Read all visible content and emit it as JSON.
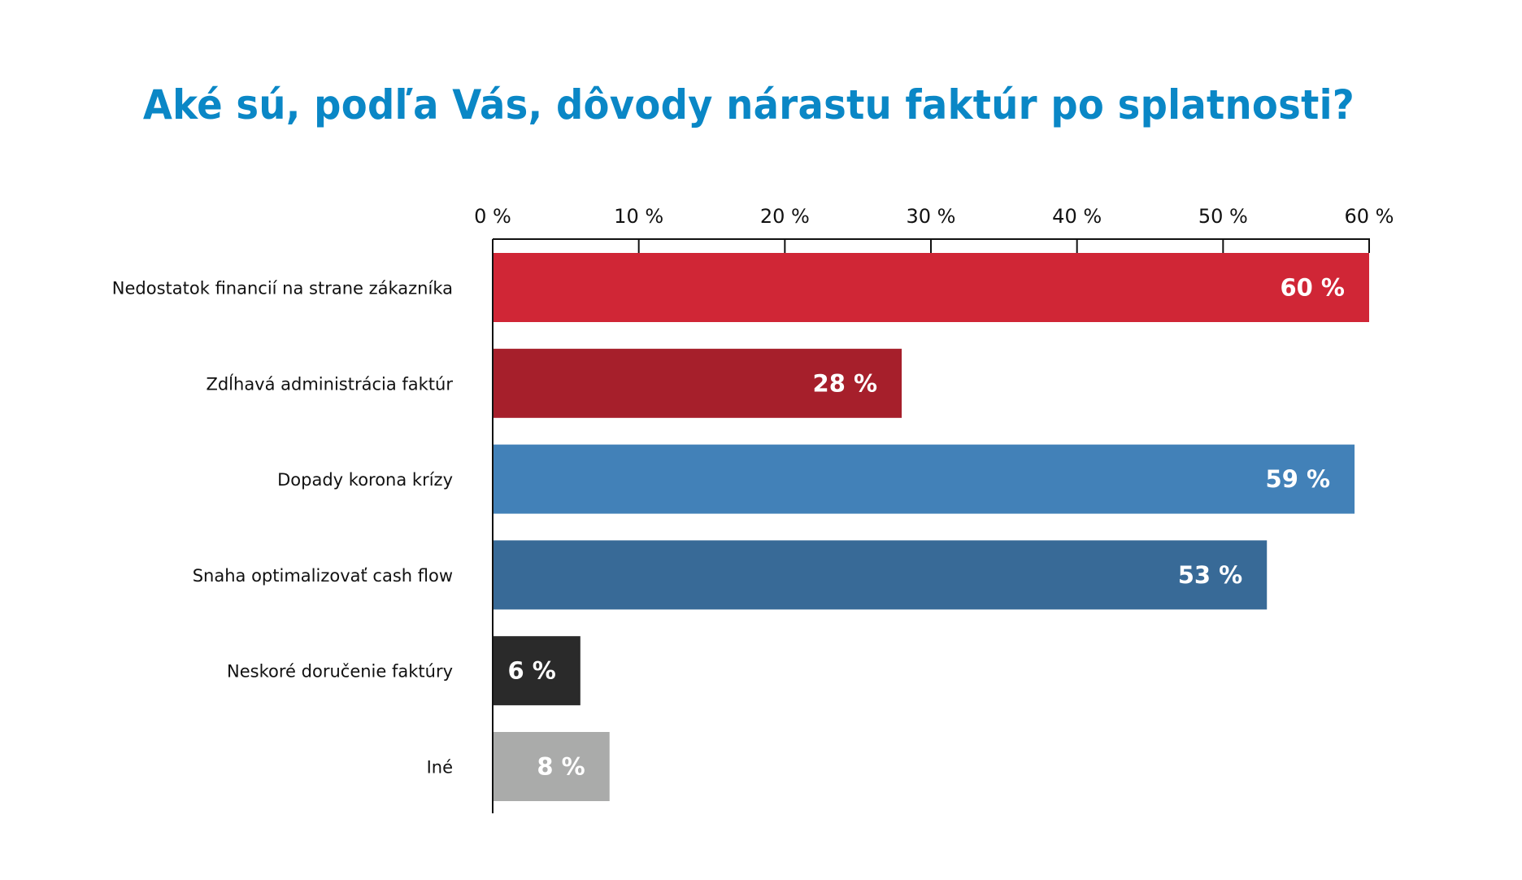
{
  "title": "Aké sú, podľa Vás, dôvody nárastu faktúr po splatnosti?",
  "colors": {
    "title": "#0a87c6",
    "axis": "#111111",
    "value_label": "#ffffff"
  },
  "chart_data": {
    "type": "bar",
    "orientation": "horizontal",
    "title": "Aké sú, podľa Vás, dôvody nárastu faktúr po splatnosti?",
    "xlabel": "",
    "ylabel": "",
    "xlim": [
      0,
      60
    ],
    "axis_position": "top",
    "grid": false,
    "x_ticks": [
      0,
      10,
      20,
      30,
      40,
      50,
      60
    ],
    "x_tick_labels": [
      "0 %",
      "10 %",
      "20 %",
      "30 %",
      "40 %",
      "50 %",
      "60 %"
    ],
    "categories": [
      "Nedostatok financií na strane zákazníka",
      "Zdĺhavá administrácia faktúr",
      "Dopady korona krízy",
      "Snaha optimalizovať cash flow",
      "Neskoré doručenie faktúry",
      "Iné"
    ],
    "values": [
      60,
      28,
      59,
      53,
      6,
      8
    ],
    "value_labels": [
      "60 %",
      "28 %",
      "59 %",
      "53 %",
      "6 %",
      "8 %"
    ],
    "bar_colors": [
      "#d02636",
      "#a61f2b",
      "#4281b8",
      "#386a97",
      "#2a2a2a",
      "#aaabaa"
    ]
  }
}
